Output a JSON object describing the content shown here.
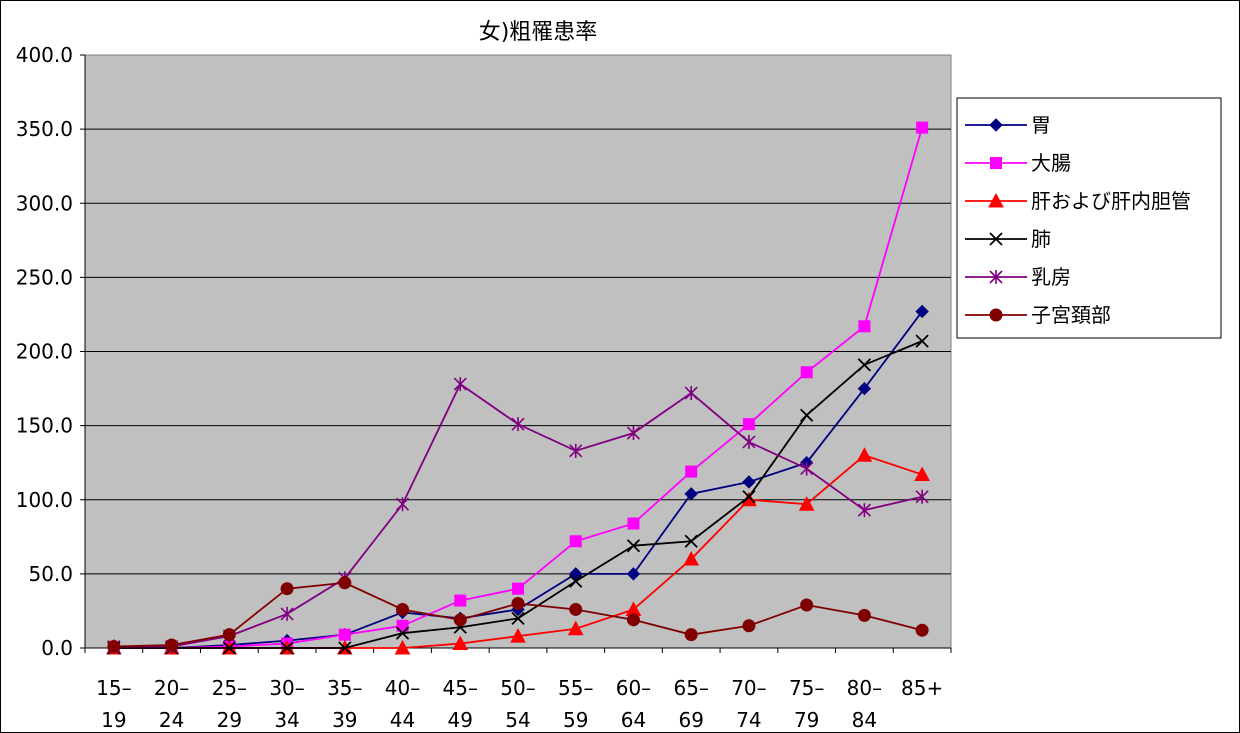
{
  "chart_data": {
    "type": "line",
    "title": "女)粗罹患率",
    "xlabel": "",
    "ylabel": "",
    "ylim": [
      0,
      400
    ],
    "yticks": [
      "0.0",
      "50.0",
      "100.0",
      "150.0",
      "200.0",
      "250.0",
      "300.0",
      "350.0",
      "400.0"
    ],
    "categories": [
      [
        "15–",
        "19"
      ],
      [
        "20–",
        "24"
      ],
      [
        "25–",
        "29"
      ],
      [
        "30–",
        "34"
      ],
      [
        "35–",
        "39"
      ],
      [
        "40–",
        "44"
      ],
      [
        "45–",
        "49"
      ],
      [
        "50–",
        "54"
      ],
      [
        "55–",
        "59"
      ],
      [
        "60–",
        "64"
      ],
      [
        "65–",
        "69"
      ],
      [
        "70–",
        "74"
      ],
      [
        "75–",
        "79"
      ],
      [
        "80–",
        "84"
      ],
      [
        "85+",
        ""
      ]
    ],
    "grid": true,
    "plot_background": "#c0c0c0",
    "legend_position": "right",
    "series": [
      {
        "name": "胃",
        "color": "#000080",
        "marker": "diamond",
        "values": [
          0,
          0,
          2,
          5,
          9,
          24,
          20,
          26,
          50,
          50,
          104,
          112,
          125,
          175,
          227
        ]
      },
      {
        "name": "大腸",
        "color": "#ff00ff",
        "marker": "square",
        "values": [
          0,
          0,
          1,
          3,
          9,
          15,
          32,
          40,
          72,
          84,
          119,
          151,
          186,
          217,
          351
        ]
      },
      {
        "name": "肝および肝内胆管",
        "color": "#ff0000",
        "marker": "triangle",
        "values": [
          0,
          0,
          0,
          0,
          0,
          0,
          3,
          8,
          13,
          26,
          60,
          100,
          97,
          130,
          117
        ]
      },
      {
        "name": "肺",
        "color": "#000000",
        "marker": "x",
        "values": [
          0,
          0,
          0,
          0,
          0,
          10,
          14,
          20,
          45,
          69,
          72,
          102,
          157,
          191,
          207
        ]
      },
      {
        "name": "乳房",
        "color": "#800080",
        "marker": "asterisk",
        "values": [
          1,
          1,
          8,
          23,
          47,
          97,
          178,
          151,
          133,
          145,
          172,
          139,
          121,
          93,
          102
        ]
      },
      {
        "name": "子宮頚部",
        "color": "#800000",
        "marker": "circle",
        "values": [
          1,
          2,
          9,
          40,
          44,
          26,
          19,
          30,
          26,
          19,
          9,
          15,
          29,
          22,
          12
        ]
      }
    ]
  }
}
